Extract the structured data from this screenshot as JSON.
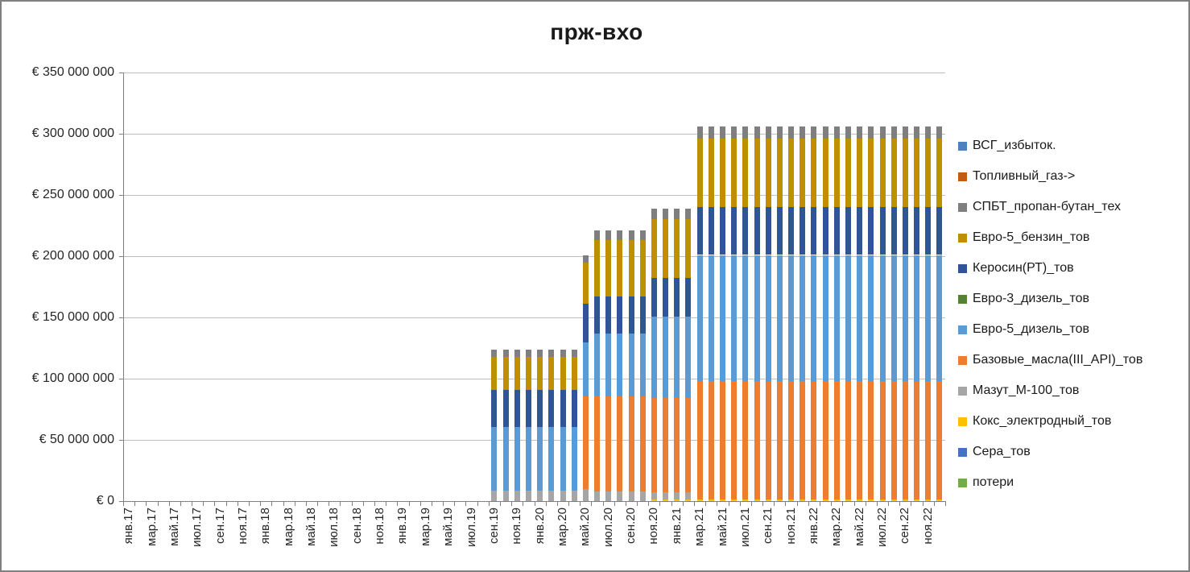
{
  "chart_data": {
    "type": "bar",
    "stacked": true,
    "title": "прж-вхо",
    "values_unit": "millions EUR",
    "y_axis": {
      "min": 0,
      "max": 350,
      "step": 50,
      "tick_labels_top_to_bottom": [
        "€ 350 000 000",
        "€ 300 000 000",
        "€ 250 000 000",
        "€ 200 000 000",
        "€ 150 000 000",
        "€ 100 000 000",
        "€ 50 000 000",
        "€ 0"
      ]
    },
    "x_tick_labels": [
      "янв.17",
      "мар.17",
      "май.17",
      "июл.17",
      "сен.17",
      "ноя.17",
      "янв.18",
      "мар.18",
      "май.18",
      "июл.18",
      "сен.18",
      "ноя.18",
      "янв.19",
      "мар.19",
      "май.19",
      "июл.19",
      "сен.19",
      "ноя.19",
      "янв.20",
      "мар.20",
      "май.20",
      "июл.20",
      "сен.20",
      "ноя.20",
      "янв.21",
      "мар.21",
      "май.21",
      "июл.21",
      "сен.21",
      "ноя.21",
      "янв.22",
      "мар.22",
      "май.22",
      "июл.22",
      "сен.22",
      "ноя.22"
    ],
    "months": [
      "янв.17",
      "фев.17",
      "мар.17",
      "апр.17",
      "май.17",
      "июн.17",
      "июл.17",
      "авг.17",
      "сен.17",
      "окт.17",
      "ноя.17",
      "дек.17",
      "янв.18",
      "фев.18",
      "мар.18",
      "апр.18",
      "май.18",
      "июн.18",
      "июл.18",
      "авг.18",
      "сен.18",
      "окт.18",
      "ноя.18",
      "дек.18",
      "янв.19",
      "фев.19",
      "мар.19",
      "апр.19",
      "май.19",
      "июн.19",
      "июл.19",
      "авг.19",
      "сен.19",
      "окт.19",
      "ноя.19",
      "дек.19",
      "янв.20",
      "фев.20",
      "мар.20",
      "апр.20",
      "май.20",
      "июн.20",
      "июл.20",
      "авг.20",
      "сен.20",
      "окт.20",
      "ноя.20",
      "дек.20",
      "янв.21",
      "фев.21",
      "мар.21",
      "апр.21",
      "май.21",
      "июн.21",
      "июл.21",
      "авг.21",
      "сен.21",
      "окт.21",
      "ноя.21",
      "дек.21",
      "янв.22",
      "фев.22",
      "мар.22",
      "апр.22",
      "май.22",
      "июн.22",
      "июл.22",
      "авг.22",
      "сен.22",
      "окт.22",
      "ноя.22",
      "дек.22"
    ],
    "legend": [
      {
        "label": "ВСГ_избыток.",
        "color": "#4E81BD"
      },
      {
        "label": "Топливный_газ->",
        "color": "#C55A11"
      },
      {
        "label": "СПБТ_пропан-бутан_тех",
        "color": "#7F7F7F"
      },
      {
        "label": "Евро-5_бензин_тов",
        "color": "#BF8F00"
      },
      {
        "label": "Керосин(РТ)_тов",
        "color": "#2F5597"
      },
      {
        "label": "Евро-3_дизель_тов",
        "color": "#548235"
      },
      {
        "label": "Евро-5_дизель_тов",
        "color": "#5B9BD5"
      },
      {
        "label": "Базовые_масла(III_API)_тов",
        "color": "#ED7D31"
      },
      {
        "label": "Мазут_М-100_тов",
        "color": "#A6A6A6"
      },
      {
        "label": "Кокс_электродный_тов",
        "color": "#FFC000"
      },
      {
        "label": "Сера_тов",
        "color": "#4472C4"
      },
      {
        "label": "потери",
        "color": "#70AD47"
      }
    ],
    "stack_order_bottom_to_top": [
      "потери",
      "Сера_тов",
      "Кокс_электродный_тов",
      "Мазут_М-100_тов",
      "Базовые_масла(III_API)_тов",
      "Евро-5_дизель_тов",
      "Евро-3_дизель_тов",
      "Керосин(РТ)_тов",
      "Евро-5_бензин_тов",
      "СПБТ_пропан-бутан_тех",
      "Топливный_газ->",
      "ВСГ_избыток."
    ],
    "periods": [
      {
        "from": "сен.19",
        "to": "апр.20",
        "total": 124,
        "values": {
          "Кокс_электродный_тов": 0,
          "Мазут_М-100_тов": 8.5,
          "Базовые_масла(III_API)_тов": 0,
          "Евро-5_дизель_тов": 52,
          "Керосин(РТ)_тов": 30.5,
          "Евро-5_бензин_тов": 27,
          "СПБТ_пропан-бутан_тех": 6
        }
      },
      {
        "from": "май.20",
        "to": "май.20",
        "total": 201,
        "values": {
          "Кокс_электродный_тов": 0,
          "Мазут_М-100_тов": 10,
          "Базовые_масла(III_API)_тов": 75.5,
          "Евро-5_дизель_тов": 44,
          "Керосин(РТ)_тов": 32,
          "Евро-5_бензин_тов": 33,
          "СПБТ_пропан-бутан_тех": 6.5
        }
      },
      {
        "from": "июн.20",
        "to": "окт.20",
        "total": 221,
        "values": {
          "Кокс_электродный_тов": 0,
          "Мазут_М-100_тов": 8,
          "Базовые_масла(III_API)_тов": 77.5,
          "Евро-5_дизель_тов": 51.5,
          "Керосин(РТ)_тов": 30,
          "Евро-5_бензин_тов": 46,
          "СПБТ_пропан-бутан_тех": 8
        }
      },
      {
        "from": "ноя.20",
        "to": "фев.21",
        "total": 239,
        "values": {
          "Кокс_электродный_тов": 1.5,
          "Мазут_М-100_тов": 5.5,
          "Базовые_масла(III_API)_тов": 77,
          "Евро-5_дизель_тов": 66.5,
          "Керосин(РТ)_тов": 31.5,
          "Евро-5_бензин_тов": 48,
          "СПБТ_пропан-бутан_тех": 9
        }
      },
      {
        "from": "мар.21",
        "to": "дек.22",
        "total": 306,
        "values": {
          "Кокс_электродный_тов": 1.5,
          "Мазут_М-100_тов": 0,
          "Базовые_масла(III_API)_тов": 96.5,
          "Евро-5_дизель_тов": 103,
          "Керосин(РТ)_тов": 39,
          "Евро-5_бензин_тов": 56,
          "СПБТ_пропан-бутан_тех": 10
        }
      }
    ],
    "style": {
      "gridline_color": "#BFBFBF",
      "axis_color": "#808080",
      "border_color": "#808080",
      "background": "#FFFFFF"
    }
  }
}
